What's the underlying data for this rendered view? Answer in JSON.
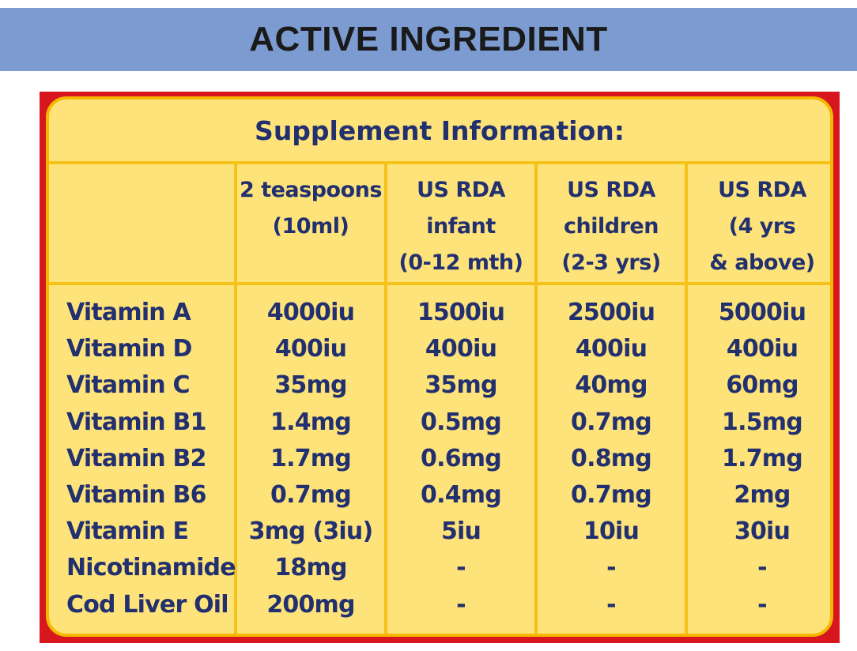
{
  "banner": {
    "title": "ACTIVE INGREDIENT"
  },
  "panel": {
    "title": "Supplement Information:"
  },
  "table": {
    "headers": [
      [],
      [
        "2 teaspoons",
        "(10ml)"
      ],
      [
        "US RDA",
        "infant",
        "(0-12 mth)"
      ],
      [
        "US RDA",
        "children",
        "(2-3 yrs)"
      ],
      [
        "US RDA",
        "(4 yrs",
        "& above)"
      ]
    ],
    "rows": [
      {
        "name": "Vitamin A",
        "values": [
          "4000iu",
          "1500iu",
          "2500iu",
          "5000iu"
        ]
      },
      {
        "name": "Vitamin D",
        "values": [
          "400iu",
          "400iu",
          "400iu",
          "400iu"
        ]
      },
      {
        "name": "Vitamin C",
        "values": [
          "35mg",
          "35mg",
          "40mg",
          "60mg"
        ]
      },
      {
        "name": "Vitamin B1",
        "values": [
          "1.4mg",
          "0.5mg",
          "0.7mg",
          "1.5mg"
        ]
      },
      {
        "name": "Vitamin B2",
        "values": [
          "1.7mg",
          "0.6mg",
          "0.8mg",
          "1.7mg"
        ]
      },
      {
        "name": "Vitamin B6",
        "values": [
          "0.7mg",
          "0.4mg",
          "0.7mg",
          "2mg"
        ]
      },
      {
        "name": "Vitamin E",
        "values": [
          "3mg (3iu)",
          "5iu",
          "10iu",
          "30iu"
        ]
      },
      {
        "name": "Nicotinamide",
        "values": [
          "18mg",
          "-",
          "-",
          "-"
        ]
      },
      {
        "name": "Cod Liver Oil",
        "values": [
          "200mg",
          "-",
          "-",
          "-"
        ]
      }
    ]
  },
  "colors": {
    "banner_bg": "#7c9bd1",
    "panel_bg": "#fde37a",
    "panel_border": "#f5b800",
    "frame_red": "#d7161e",
    "text_navy": "#23306f"
  }
}
